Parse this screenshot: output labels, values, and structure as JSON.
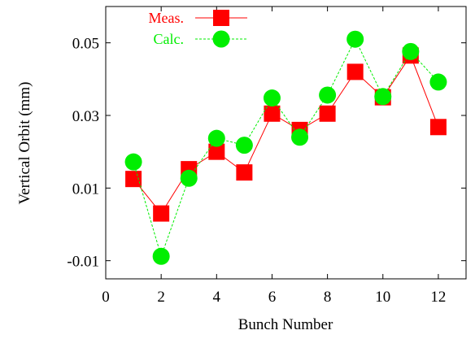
{
  "chart_data": {
    "type": "line",
    "title": "",
    "xlabel": "Bunch Number",
    "ylabel": "Vertical Orbit (mm)",
    "xlim": [
      0,
      13
    ],
    "ylim": [
      -0.015,
      0.06
    ],
    "xticks": [
      0,
      2,
      4,
      6,
      8,
      10,
      12
    ],
    "xtick_labels": [
      "0",
      "2",
      "4",
      "6",
      "8",
      "10",
      "12"
    ],
    "yticks": [
      -0.01,
      0.01,
      0.03,
      0.05
    ],
    "ytick_labels": [
      "-0.01",
      "0.01",
      "0.03",
      "0.05"
    ],
    "grid": false,
    "legend": "top-left",
    "series": [
      {
        "name": "Meas.",
        "color": "#ff0000",
        "marker": "square",
        "line": "solid",
        "x": [
          1,
          2,
          3,
          4,
          5,
          6,
          7,
          8,
          9,
          10,
          11,
          12
        ],
        "y": [
          0.0125,
          0.003,
          0.0152,
          0.02,
          0.0143,
          0.0305,
          0.026,
          0.0305,
          0.042,
          0.035,
          0.0465,
          0.0268
        ]
      },
      {
        "name": "Calc.",
        "color": "#00ee00",
        "marker": "circle",
        "line": "dashed",
        "x": [
          1,
          2,
          3,
          4,
          5,
          6,
          7,
          8,
          9,
          10,
          11,
          12
        ],
        "y": [
          0.0172,
          -0.0088,
          0.0127,
          0.0237,
          0.0218,
          0.0348,
          0.024,
          0.0356,
          0.051,
          0.0352,
          0.0476,
          0.0392
        ]
      }
    ]
  }
}
